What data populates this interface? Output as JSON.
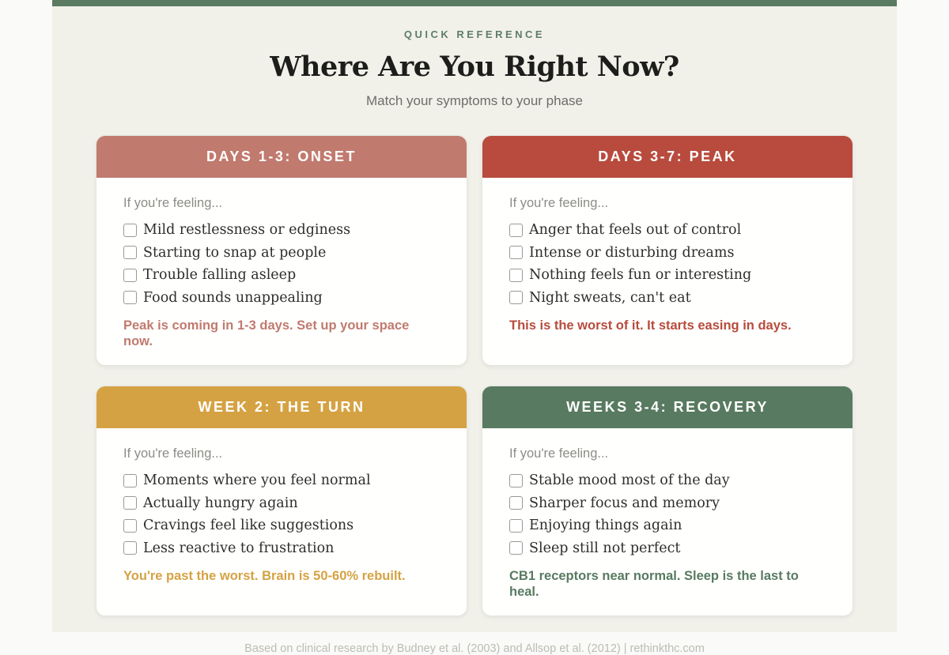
{
  "page": {
    "eyebrow": "QUICK REFERENCE",
    "title": "Where Are You Right Now?",
    "subtitle": "Match your symptoms to your phase",
    "prompt": "If you're feeling...",
    "footer": "Based on clinical research by Budney et al. (2003) and Allsop et al. (2012) | rethinkthc.com",
    "topbar_color": "#5a7a62",
    "background": "#f1f1ea",
    "outer_background": "#fafaf8"
  },
  "cards": [
    {
      "title": "DAYS 1-3: ONSET",
      "color": "#c17a6e",
      "items": [
        "Mild restlessness or edginess",
        "Starting to snap at people",
        "Trouble falling asleep",
        "Food sounds unappealing"
      ],
      "note": "Peak is coming in 1-3 days. Set up your space now."
    },
    {
      "title": "DAYS 3-7: PEAK",
      "color": "#b84b3d",
      "items": [
        "Anger that feels out of control",
        "Intense or disturbing dreams",
        "Nothing feels fun or interesting",
        "Night sweats, can't eat"
      ],
      "note": "This is the worst of it. It starts easing in days."
    },
    {
      "title": "WEEK 2: THE TURN",
      "color": "#d5a243",
      "items": [
        "Moments where you feel normal",
        "Actually hungry again",
        "Cravings feel like suggestions",
        "Less reactive to frustration"
      ],
      "note": "You're past the worst. Brain is 50-60% rebuilt."
    },
    {
      "title": "WEEKS 3-4: RECOVERY",
      "color": "#587a60",
      "items": [
        "Stable mood most of the day",
        "Sharper focus and memory",
        "Enjoying things again",
        "Sleep still not perfect"
      ],
      "note": "CB1 receptors near normal. Sleep is the last to heal."
    }
  ]
}
